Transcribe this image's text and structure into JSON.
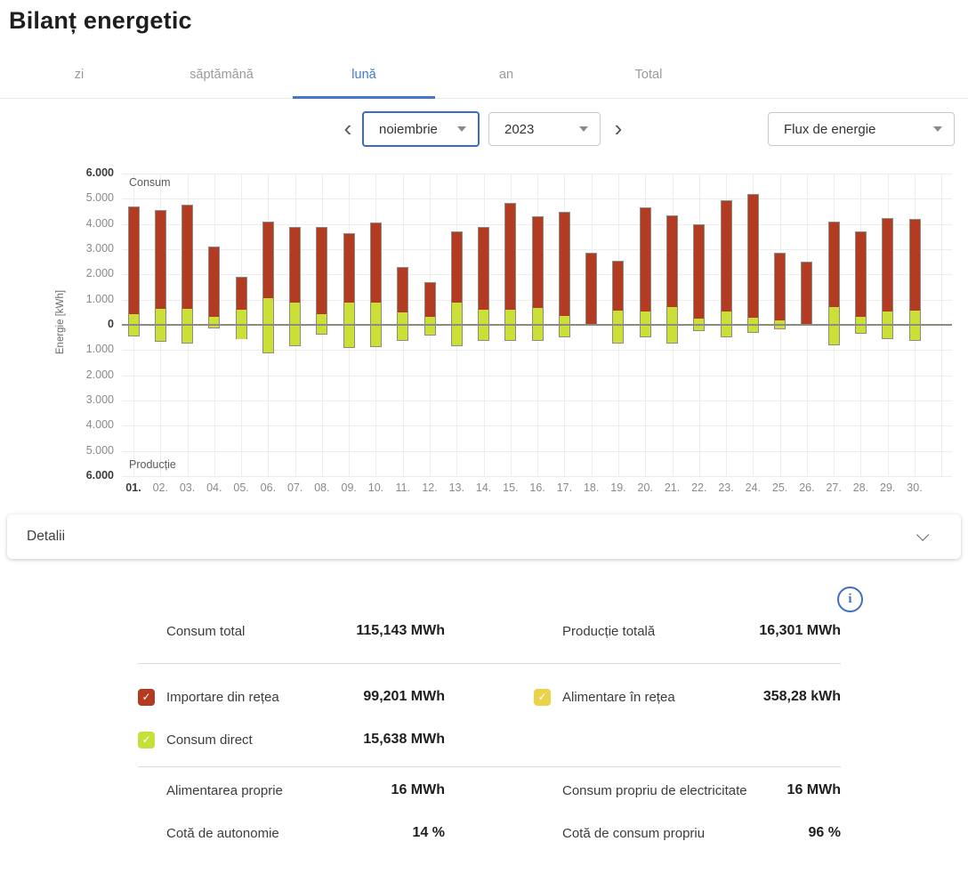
{
  "title": "Bilanț energetic",
  "tabs": {
    "items": [
      "zi",
      "săptămână",
      "lună",
      "an",
      "Total"
    ],
    "active": "lună"
  },
  "controls": {
    "month": "noiembrie",
    "year": "2023",
    "view": "Flux de energie"
  },
  "icons": {
    "prev": "‹",
    "next": "›",
    "caret": "caret-down",
    "collapse": "chevron-down",
    "check": "✓",
    "info": "i"
  },
  "colors": {
    "accent_blue": "#4476cd",
    "import_red": "#b23b22",
    "direct_green": "#cbdf37",
    "feedin_yellow": "#e9d34d"
  },
  "chart_data": {
    "type": "bar",
    "stacked": true,
    "title_top": "Consum",
    "title_bottom": "Producție",
    "ylabel": "Energie [kWh]",
    "unit": "kWh",
    "ylim": [
      -6000,
      6000
    ],
    "ytick_step": 1000,
    "ytick_labels": [
      "6.000",
      "5.000",
      "4.000",
      "3.000",
      "2.000",
      "1.000",
      "0",
      "1.000",
      "2.000",
      "3.000",
      "4.000",
      "5.000",
      "6.000"
    ],
    "grid": true,
    "legend_position": "none",
    "categories": [
      "01.",
      "02.",
      "03.",
      "04.",
      "05.",
      "06.",
      "07.",
      "08.",
      "09.",
      "10.",
      "11.",
      "12.",
      "13.",
      "14.",
      "15.",
      "16.",
      "17.",
      "18.",
      "19.",
      "20.",
      "21.",
      "22.",
      "23.",
      "24.",
      "25.",
      "26.",
      "27.",
      "28.",
      "29.",
      "30."
    ],
    "series": [
      {
        "name": "Importare din rețea",
        "side": "consumption",
        "color": "#b23b22",
        "values": [
          4300,
          3950,
          4150,
          2820,
          1325,
          3050,
          3050,
          3500,
          2800,
          3180,
          1845,
          1420,
          2830,
          3340,
          4275,
          3665,
          4180,
          2850,
          2000,
          4160,
          3685,
          3780,
          4460,
          4945,
          2710,
          2500,
          3435,
          3410,
          3735,
          3650
        ]
      },
      {
        "name": "Consum direct",
        "side": "consumption",
        "color": "#cbdf37",
        "values": [
          400,
          600,
          600,
          280,
          575,
          1050,
          850,
          400,
          850,
          870,
          455,
          280,
          870,
          560,
          575,
          635,
          320,
          0,
          550,
          490,
          665,
          220,
          490,
          255,
          140,
          0,
          665,
          290,
          515,
          550
        ]
      },
      {
        "name": "Consum direct",
        "side": "production",
        "color": "#cbdf37",
        "values": [
          450,
          680,
          740,
          90,
          545,
          1120,
          860,
          390,
          910,
          880,
          620,
          380,
          830,
          620,
          640,
          640,
          505,
          0,
          690,
          480,
          740,
          245,
          480,
          330,
          135,
          0,
          795,
          350,
          560,
          620
        ]
      },
      {
        "name": "Alimentare în rețea",
        "side": "production",
        "color": "#e9d34d",
        "values": [
          0,
          0,
          0,
          60,
          30,
          0,
          0,
          0,
          0,
          0,
          0,
          40,
          0,
          0,
          0,
          0,
          0,
          0,
          50,
          0,
          0,
          0,
          0,
          0,
          40,
          0,
          0,
          0,
          0,
          0
        ]
      }
    ]
  },
  "details_bar": {
    "label": "Detalii"
  },
  "stats": {
    "totals": {
      "left": {
        "label": "Consum total",
        "value": "115,143 MWh"
      },
      "right": {
        "label": "Producție totală",
        "value": "16,301 MWh"
      }
    },
    "legend": {
      "import": {
        "label": "Importare din rețea",
        "value": "99,201 MWh",
        "color": "#b23b22"
      },
      "feedin": {
        "label": "Alimentare în rețea",
        "value": "358,28 kWh",
        "color": "#e9d34d"
      },
      "direct": {
        "label": "Consum direct",
        "value": "15,638 MWh",
        "color": "#c6e039"
      }
    },
    "self": {
      "left": {
        "label": "Alimentarea proprie",
        "value": "16 MWh"
      },
      "right": {
        "label": "Consum propriu de electricitate",
        "value": "16 MWh"
      }
    },
    "quota": {
      "left": {
        "label": "Cotă de autonomie",
        "value": "14 %"
      },
      "right": {
        "label": "Cotă de consum propriu",
        "value": "96 %"
      }
    }
  }
}
